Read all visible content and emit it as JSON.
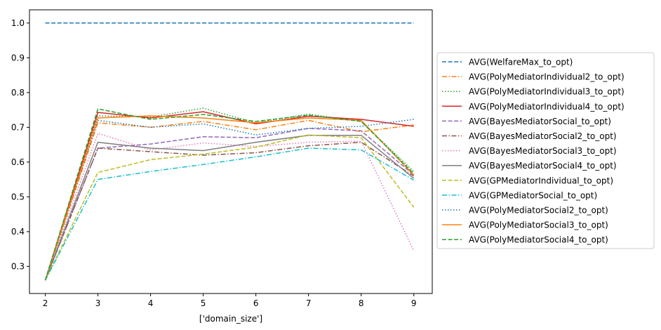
{
  "chart_data": {
    "type": "line",
    "title": "",
    "xlabel": "['domain_size']",
    "ylabel": "",
    "x": [
      2,
      3,
      4,
      5,
      6,
      7,
      8,
      9
    ],
    "xlim": [
      1.7,
      9.35
    ],
    "ylim": [
      0.222,
      1.038
    ],
    "xticks": [
      "2",
      "3",
      "4",
      "5",
      "6",
      "7",
      "8",
      "9"
    ],
    "yticks": [
      "0.3",
      "0.4",
      "0.5",
      "0.6",
      "0.7",
      "0.8",
      "0.9",
      "1.0"
    ],
    "grid": false,
    "legend_position": "outside-right",
    "series": [
      {
        "name": "AVG(WelfareMax_to_opt)",
        "color": "#1f77b4",
        "dash": "dashed",
        "values": [
          1.0,
          1.0,
          1.0,
          1.0,
          1.0,
          1.0,
          1.0,
          1.0
        ]
      },
      {
        "name": "AVG(PolyMediatorIndividual2_to_opt)",
        "color": "#ff7f0e",
        "dash": "dashdot",
        "values": [
          0.26,
          0.713,
          0.7,
          0.717,
          0.693,
          0.72,
          0.687,
          0.707
        ]
      },
      {
        "name": "AVG(PolyMediatorIndividual3_to_opt)",
        "color": "#2ca02c",
        "dash": "dotted",
        "values": [
          0.26,
          0.733,
          0.73,
          0.755,
          0.713,
          0.738,
          0.717,
          0.573
        ]
      },
      {
        "name": "AVG(PolyMediatorIndividual4_to_opt)",
        "color": "#d62728",
        "dash": "solid",
        "values": [
          0.26,
          0.743,
          0.727,
          0.745,
          0.71,
          0.732,
          0.723,
          0.703
        ]
      },
      {
        "name": "AVG(BayesMediatorSocial_to_opt)",
        "color": "#9467bd",
        "dash": "dashed",
        "values": [
          0.26,
          0.64,
          0.652,
          0.673,
          0.67,
          0.697,
          0.69,
          0.563
        ]
      },
      {
        "name": "AVG(BayesMediatorSocial2_to_opt)",
        "color": "#8c564b",
        "dash": "dashdot",
        "values": [
          0.26,
          0.64,
          0.63,
          0.62,
          0.627,
          0.647,
          0.657,
          0.56
        ]
      },
      {
        "name": "AVG(BayesMediatorSocial3_to_opt)",
        "color": "#e377c2",
        "dash": "dotted",
        "values": [
          0.26,
          0.683,
          0.635,
          0.655,
          0.645,
          0.657,
          0.66,
          0.345
        ]
      },
      {
        "name": "AVG(BayesMediatorSocial4_to_opt)",
        "color": "#7f7f7f",
        "dash": "solid",
        "values": [
          0.26,
          0.657,
          0.64,
          0.633,
          0.657,
          0.677,
          0.677,
          0.553
        ]
      },
      {
        "name": "AVG(GPMediatorIndividual_to_opt)",
        "color": "#bcbd22",
        "dash": "dashed",
        "values": [
          0.26,
          0.57,
          0.607,
          0.623,
          0.643,
          0.678,
          0.67,
          0.47
        ]
      },
      {
        "name": "AVG(GPMediatorSocial_to_opt)",
        "color": "#17becf",
        "dash": "dashdot",
        "values": [
          0.26,
          0.55,
          0.573,
          0.593,
          0.615,
          0.64,
          0.635,
          0.548
        ]
      },
      {
        "name": "AVG(PolyMediatorSocial2_to_opt)",
        "color": "#1f77b4",
        "dash": "dotted",
        "values": [
          0.26,
          0.72,
          0.7,
          0.71,
          0.678,
          0.697,
          0.703,
          0.723
        ]
      },
      {
        "name": "AVG(PolyMediatorSocial3_to_opt)",
        "color": "#ff7f0e",
        "dash": "solid",
        "values": [
          0.26,
          0.727,
          0.733,
          0.727,
          0.713,
          0.727,
          0.72,
          0.563
        ]
      },
      {
        "name": "AVG(PolyMediatorSocial4_to_opt)",
        "color": "#2ca02c",
        "dash": "dashed",
        "values": [
          0.26,
          0.753,
          0.723,
          0.737,
          0.717,
          0.735,
          0.717,
          0.567
        ]
      }
    ]
  }
}
